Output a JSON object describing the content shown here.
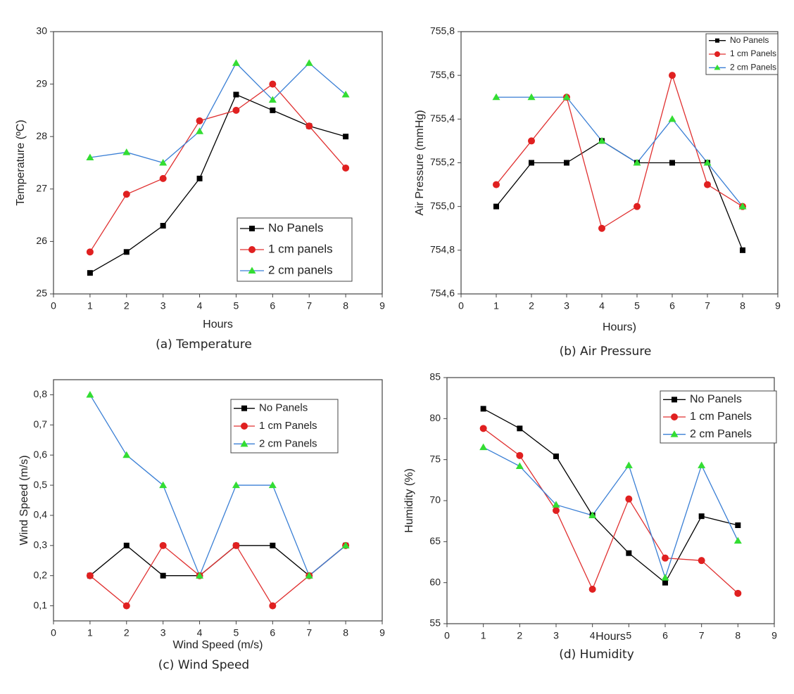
{
  "chart_data": [
    {
      "type": "line",
      "caption": "(a) Temperature",
      "x_label": "Hours",
      "y_label": "Temperature (ºC)",
      "x": [
        1,
        2,
        3,
        4,
        5,
        6,
        7,
        8
      ],
      "xlim": [
        0,
        9
      ],
      "xticks": [
        0,
        1,
        2,
        3,
        4,
        5,
        6,
        7,
        8,
        9
      ],
      "ylim": [
        25,
        30
      ],
      "yticks": [
        25,
        26,
        27,
        28,
        29,
        30
      ],
      "legend": "lower right",
      "series": [
        {
          "name": "No Panels",
          "color": "#000000",
          "marker_color": "#000000",
          "marker": "square",
          "values": [
            25.4,
            25.8,
            26.3,
            27.2,
            28.8,
            28.5,
            28.2,
            28.0
          ]
        },
        {
          "name": "1 cm panels",
          "color": "#e03030",
          "marker_color": "#e02020",
          "marker": "circle",
          "values": [
            25.8,
            26.9,
            27.2,
            28.3,
            28.5,
            29.0,
            28.2,
            27.4
          ]
        },
        {
          "name": "2 cm panels",
          "color": "#3a7fd5",
          "marker_color": "#33dd33",
          "marker": "triangle",
          "values": [
            27.6,
            27.7,
            27.5,
            28.1,
            29.4,
            28.7,
            29.4,
            28.8
          ]
        }
      ]
    },
    {
      "type": "line",
      "caption": "(b) Air Pressure",
      "x_label": "Hours)",
      "y_label": "Air Pressure (mmHg)",
      "x": [
        1,
        2,
        3,
        4,
        5,
        6,
        7,
        8
      ],
      "xlim": [
        0,
        9
      ],
      "xticks": [
        0,
        1,
        2,
        3,
        4,
        5,
        6,
        7,
        8,
        9
      ],
      "ylim": [
        754.6,
        755.8
      ],
      "yticks": [
        {
          "value": 754.6,
          "label": "754,6"
        },
        {
          "value": 754.8,
          "label": "754,8"
        },
        {
          "value": 755.0,
          "label": "755,0"
        },
        {
          "value": 755.2,
          "label": "755,2"
        },
        {
          "value": 755.4,
          "label": "755,4"
        },
        {
          "value": 755.6,
          "label": "755,6"
        },
        {
          "value": 755.8,
          "label": "755,8"
        }
      ],
      "legend": "upper right",
      "series": [
        {
          "name": "No Panels",
          "color": "#000000",
          "marker_color": "#000000",
          "marker": "square",
          "values": [
            755.0,
            755.2,
            755.2,
            755.3,
            755.2,
            755.2,
            755.2,
            754.8
          ]
        },
        {
          "name": "1 cm Panels",
          "color": "#e03030",
          "marker_color": "#e02020",
          "marker": "circle",
          "values": [
            755.1,
            755.3,
            755.5,
            754.9,
            755.0,
            755.6,
            755.1,
            755.0
          ]
        },
        {
          "name": "2 cm Panels",
          "color": "#3a7fd5",
          "marker_color": "#33dd33",
          "marker": "triangle",
          "values": [
            755.5,
            755.5,
            755.5,
            755.3,
            755.2,
            755.4,
            755.2,
            755.0
          ]
        }
      ]
    },
    {
      "type": "line",
      "caption": "(c) Wind Speed",
      "x_label": "Wind Speed (m/s)",
      "y_label": "Wind Speed (m/s)",
      "x": [
        1,
        2,
        3,
        4,
        5,
        6,
        7,
        8
      ],
      "xlim": [
        0,
        9
      ],
      "xticks": [
        0,
        1,
        2,
        3,
        4,
        5,
        6,
        7,
        8,
        9
      ],
      "ylim": [
        0.05,
        0.85
      ],
      "yticks": [
        {
          "value": 0.1,
          "label": "0,1"
        },
        {
          "value": 0.2,
          "label": "0,2"
        },
        {
          "value": 0.3,
          "label": "0,3"
        },
        {
          "value": 0.4,
          "label": "0,4"
        },
        {
          "value": 0.5,
          "label": "0,5"
        },
        {
          "value": 0.6,
          "label": "0,6"
        },
        {
          "value": 0.7,
          "label": "0,7"
        },
        {
          "value": 0.8,
          "label": "0,8"
        }
      ],
      "legend": "upper right",
      "series": [
        {
          "name": "No Panels",
          "color": "#000000",
          "marker_color": "#000000",
          "marker": "square",
          "values": [
            0.2,
            0.3,
            0.2,
            0.2,
            0.3,
            0.3,
            0.2,
            0.3
          ]
        },
        {
          "name": "1 cm Panels",
          "color": "#e03030",
          "marker_color": "#e02020",
          "marker": "circle",
          "values": [
            0.2,
            0.1,
            0.3,
            0.2,
            0.3,
            0.1,
            0.2,
            0.3
          ]
        },
        {
          "name": "2 cm Panels",
          "color": "#3a7fd5",
          "marker_color": "#33dd33",
          "marker": "triangle",
          "values": [
            0.8,
            0.6,
            0.5,
            0.2,
            0.5,
            0.5,
            0.2,
            0.3
          ]
        }
      ]
    },
    {
      "type": "line",
      "caption": "(d) Humidity",
      "x_label": "Hours",
      "y_label": "Humidity (%)",
      "x": [
        1,
        2,
        3,
        4,
        5,
        6,
        7,
        8
      ],
      "xlim": [
        0,
        9
      ],
      "xticks": [
        0,
        1,
        2,
        3,
        4,
        5,
        6,
        7,
        8,
        9
      ],
      "ylim": [
        55,
        85
      ],
      "yticks": [
        55,
        60,
        65,
        70,
        75,
        80,
        85
      ],
      "legend": "upper right",
      "series": [
        {
          "name": "No Panels",
          "color": "#000000",
          "marker_color": "#000000",
          "marker": "square",
          "values": [
            81.2,
            78.8,
            75.4,
            68.2,
            63.6,
            60.0,
            68.1,
            67.0
          ]
        },
        {
          "name": "1 cm Panels",
          "color": "#e03030",
          "marker_color": "#e02020",
          "marker": "circle",
          "values": [
            78.8,
            75.5,
            68.8,
            59.2,
            70.2,
            63.0,
            62.7,
            58.7
          ]
        },
        {
          "name": "2 cm Panels",
          "color": "#3a7fd5",
          "marker_color": "#33dd33",
          "marker": "triangle",
          "values": [
            76.5,
            74.2,
            69.5,
            68.2,
            74.3,
            60.6,
            74.3,
            65.1
          ]
        }
      ]
    }
  ]
}
